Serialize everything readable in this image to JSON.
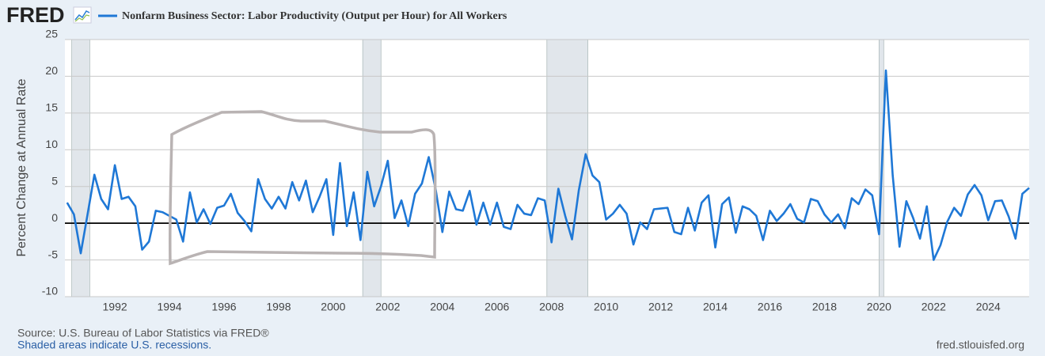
{
  "logo": "FRED",
  "chart_data": {
    "type": "line",
    "y_label": "Percent Change at Annual Rate",
    "source": "Source: U.S. Bureau of Labor Statistics via FRED®",
    "note": "Shaded areas indicate U.S. recessions.",
    "site": "fred.stlouisfed.org",
    "xlim": [
      1990.17,
      2025.5
    ],
    "xticks": [
      1992,
      1994,
      1996,
      1998,
      2000,
      2002,
      2004,
      2006,
      2008,
      2010,
      2012,
      2014,
      2016,
      2018,
      2020,
      2022,
      2024
    ],
    "ylim": [
      -10,
      25
    ],
    "yticks": [
      -10,
      -5,
      0,
      5,
      10,
      15,
      20,
      25
    ],
    "grid": true,
    "recessions": [
      [
        1990.42,
        1991.08
      ],
      [
        2001.08,
        2001.75
      ],
      [
        2007.83,
        2009.33
      ],
      [
        2020.0,
        2020.17
      ]
    ],
    "x": [
      1990.25,
      1990.5,
      1990.75,
      1991,
      1991.25,
      1991.5,
      1991.75,
      1992,
      1992.25,
      1992.5,
      1992.75,
      1993,
      1993.25,
      1993.5,
      1993.75,
      1994,
      1994.25,
      1994.5,
      1994.75,
      1995,
      1995.25,
      1995.5,
      1995.75,
      1996,
      1996.25,
      1996.5,
      1996.75,
      1997,
      1997.25,
      1997.5,
      1997.75,
      1998,
      1998.25,
      1998.5,
      1998.75,
      1999,
      1999.25,
      1999.5,
      1999.75,
      2000,
      2000.25,
      2000.5,
      2000.75,
      2001,
      2001.25,
      2001.5,
      2001.75,
      2002,
      2002.25,
      2002.5,
      2002.75,
      2003,
      2003.25,
      2003.5,
      2003.75,
      2004,
      2004.25,
      2004.5,
      2004.75,
      2005,
      2005.25,
      2005.5,
      2005.75,
      2006,
      2006.25,
      2006.5,
      2006.75,
      2007,
      2007.25,
      2007.5,
      2007.75,
      2008,
      2008.25,
      2008.5,
      2008.75,
      2009,
      2009.25,
      2009.5,
      2009.75,
      2010,
      2010.25,
      2010.5,
      2010.75,
      2011,
      2011.25,
      2011.5,
      2011.75,
      2012,
      2012.25,
      2012.5,
      2012.75,
      2013,
      2013.25,
      2013.5,
      2013.75,
      2014,
      2014.25,
      2014.5,
      2014.75,
      2015,
      2015.25,
      2015.5,
      2015.75,
      2016,
      2016.25,
      2016.5,
      2016.75,
      2017,
      2017.25,
      2017.5,
      2017.75,
      2018,
      2018.25,
      2018.5,
      2018.75,
      2019,
      2019.25,
      2019.5,
      2019.75,
      2020,
      2020.25,
      2020.5,
      2020.75,
      2021,
      2021.25,
      2021.5,
      2021.75,
      2022,
      2022.25,
      2022.5,
      2022.75,
      2023,
      2023.25,
      2023.5,
      2023.75,
      2024,
      2024.25,
      2024.5,
      2024.75,
      2025,
      2025.25,
      2025.5
    ],
    "series": [
      {
        "name": "Nonfarm Business Sector: Labor Productivity (Output per Hour) for All Workers",
        "color": "#1f78d6",
        "values": [
          2.8,
          1.2,
          -4.1,
          1.2,
          6.6,
          3.3,
          1.9,
          7.9,
          3.3,
          3.6,
          2.3,
          -3.6,
          -2.5,
          1.7,
          1.5,
          1.0,
          0.5,
          -2.5,
          4.2,
          0.1,
          1.9,
          -0.1,
          2.1,
          2.4,
          4.0,
          1.4,
          0.3,
          -1.1,
          6.0,
          3.3,
          2.0,
          3.6,
          2.0,
          5.6,
          3.1,
          5.8,
          1.5,
          3.6,
          6.0,
          -1.6,
          8.2,
          -0.4,
          4.2,
          -2.3,
          7.0,
          2.3,
          5.0,
          8.5,
          0.7,
          3.1,
          -0.4,
          4.0,
          5.4,
          9.0,
          4.7,
          -1.2,
          4.3,
          1.9,
          1.7,
          4.4,
          -0.2,
          2.8,
          -0.2,
          2.8,
          -0.5,
          -0.8,
          2.5,
          1.3,
          1.1,
          3.4,
          3.1,
          -2.6,
          4.7,
          1.0,
          -2.2,
          4.5,
          9.4,
          6.5,
          5.6,
          0.5,
          1.3,
          2.5,
          1.3,
          -2.9,
          0.1,
          -0.8,
          1.9,
          2.0,
          2.1,
          -1.2,
          -1.5,
          2.1,
          -1.0,
          2.8,
          3.8,
          -3.3,
          2.6,
          3.5,
          -1.3,
          2.3,
          1.9,
          1.0,
          -2.3,
          1.7,
          0.3,
          1.3,
          2.6,
          0.6,
          0.1,
          3.3,
          3.0,
          1.2,
          0.1,
          1.2,
          -0.7,
          3.4,
          2.6,
          4.6,
          3.8,
          -1.5,
          20.8,
          6.5,
          -3.2,
          3.0,
          0.7,
          -2.1,
          2.3,
          -5.0,
          -3.0,
          0.2,
          2.1,
          1.0,
          3.9,
          5.2,
          3.8,
          0.4,
          3.0,
          3.1,
          0.9,
          -2.1,
          4.0,
          4.8
        ]
      }
    ]
  }
}
